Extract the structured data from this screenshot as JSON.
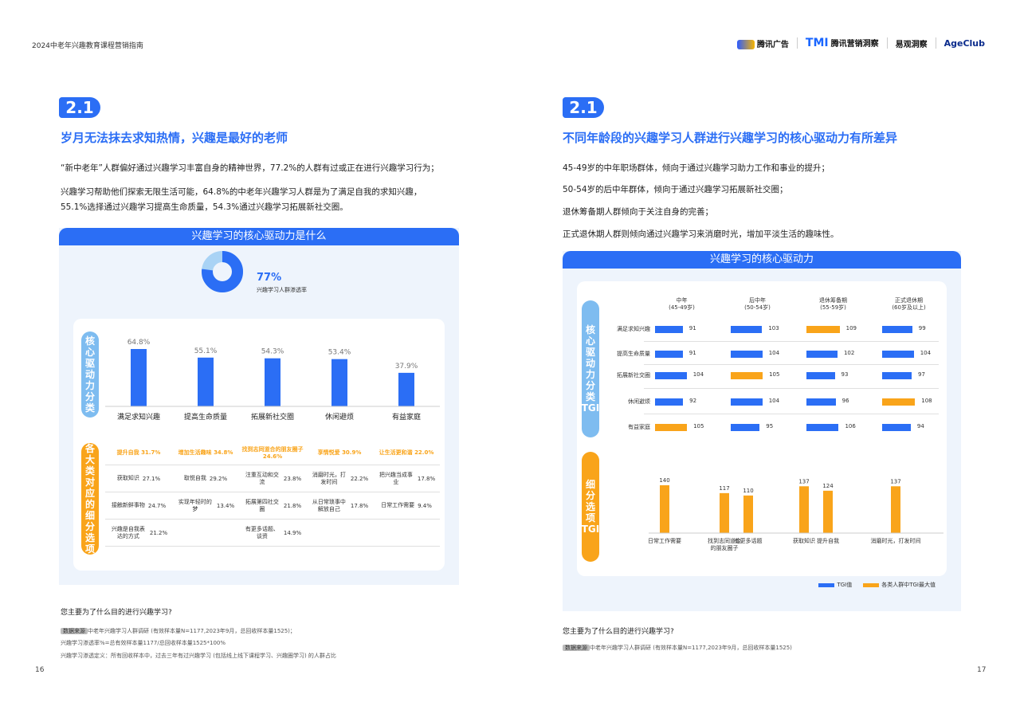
{
  "header": {
    "doc_title": "2024中老年兴趣教育课程营销指南",
    "logos": [
      "腾讯广告",
      "腾讯营销洞察",
      "易观洞察",
      "AgeClub"
    ]
  },
  "left": {
    "section_num": "2.1",
    "heading": "岁月无法抹去求知热情，兴趣是最好的老师",
    "para1": "“新中老年”人群偏好通过兴趣学习丰富自身的精神世界，77.2%的人群有过或正在进行兴趣学习行为；",
    "para2": "兴趣学习帮助他们探索无限生活可能，64.8%的中老年兴趣学习人群是为了满足自我的求知兴趣，",
    "para3": "55.1%选择通过兴趣学习提高生命质量，54.3%通过兴趣学习拓展新社交圈。",
    "panel_title": "兴趣学习的核心驱动力是什么",
    "donut_value": "77%",
    "donut_label": "兴趣学习人群渗透率",
    "donut_fraction": 0.77,
    "axis_label_1": "核心驱动力分类",
    "axis_label_2": "各大类对应的细分选项",
    "bars": [
      {
        "label": "满足求知兴趣",
        "value": 64.8,
        "text": "64.8%"
      },
      {
        "label": "提高生命质量",
        "value": 55.1,
        "text": "55.1%"
      },
      {
        "label": "拓展新社交圈",
        "value": 54.3,
        "text": "54.3%"
      },
      {
        "label": "休闲避烦",
        "value": 53.4,
        "text": "53.4%"
      },
      {
        "label": "有益家庭",
        "value": 37.9,
        "text": "37.9%"
      }
    ],
    "sub_headers": [
      {
        "name": "提升自我",
        "value": "31.7%"
      },
      {
        "name": "增加生活趣味",
        "value": "34.8%"
      },
      {
        "name": "找到志同道合的朋友圈子",
        "value": "24.6%"
      },
      {
        "name": "享情悦爱",
        "value": "30.9%"
      },
      {
        "name": "让生活更和谐",
        "value": "22.0%"
      }
    ],
    "sub_rows": [
      [
        {
          "name": "获取知识",
          "value": "27.1%"
        },
        {
          "name": "取悦自我",
          "value": "29.2%"
        },
        {
          "name": "注重互动和交流",
          "value": "23.8%"
        },
        {
          "name": "消磨时光，打发时间",
          "value": "22.2%"
        },
        {
          "name": "把兴趣当成事业",
          "value": "17.8%"
        }
      ],
      [
        {
          "name": "接触新鲜事物",
          "value": "24.7%"
        },
        {
          "name": "实现年轻时的梦",
          "value": "13.4%"
        },
        {
          "name": "拓展第四社交圈",
          "value": "21.8%"
        },
        {
          "name": "从日常琐事中解放自己",
          "value": "17.8%"
        },
        {
          "name": "日常工作需要",
          "value": "9.4%"
        }
      ],
      [
        {
          "name": "兴趣是自我表达的方式",
          "value": "21.2%"
        },
        {
          "name": "",
          "value": ""
        },
        {
          "name": "有更多话题、谈资",
          "value": "14.9%"
        },
        {
          "name": "",
          "value": ""
        },
        {
          "name": "",
          "value": ""
        }
      ]
    ],
    "question": "您主要为了什么目的进行兴趣学习?",
    "source_tag": "数据来源",
    "source": "中老年兴趣学习人群调研 (有效样本量N=1177,2023年9月，总回收样本量1525)；",
    "note1": "兴趣学习渗透率%=总有效样本量1177/总回收样本量1525*100%",
    "note2": "兴趣学习渗透定义：所有回收样本中，过去三年有过兴趣学习 (包括线上线下课程学习、兴趣圈学习) 的人群占比",
    "page_num": "16"
  },
  "right": {
    "section_num": "2.1",
    "heading": "不同年龄段的兴趣学习人群进行兴趣学习的核心驱动力有所差异",
    "lines": [
      "45-49岁的中年职场群体，倾向于通过兴趣学习助力工作和事业的提升；",
      "50-54岁的后中年群体，倾向于通过兴趣学习拓展新社交圈；",
      "退休筹备期人群倾向于关注自身的完善；",
      "正式退休期人群则倾向通过兴趣学习来消磨时光，增加平淡生活的趣味性。"
    ],
    "panel_title": "兴趣学习的核心驱动力",
    "axis_label_top": "核心驱动力分类TGI",
    "axis_label_bottom": "细分选项TGI",
    "columns": [
      {
        "name": "中年",
        "range": "(45-49岁)"
      },
      {
        "name": "后中年",
        "range": "(50-54岁)"
      },
      {
        "name": "退休筹备期",
        "range": "(55-59岁)"
      },
      {
        "name": "正式退休期",
        "range": "(60岁及以上)"
      }
    ],
    "tgi_rows": [
      {
        "label": "满足求知兴趣",
        "values": [
          91,
          103,
          109,
          99
        ],
        "max_index": 2
      },
      {
        "label": "提高生命质量",
        "values": [
          91,
          104,
          102,
          104
        ],
        "max_index": -1
      },
      {
        "label": "拓展新社交圈",
        "values": [
          104,
          105,
          93,
          97
        ],
        "max_index": 1
      },
      {
        "label": "休闲避烦",
        "values": [
          92,
          104,
          96,
          108
        ],
        "max_index": 3
      },
      {
        "label": "有益家庭",
        "values": [
          105,
          95,
          106,
          94
        ],
        "max_index": 0
      }
    ],
    "sub_bars": [
      {
        "label": "日常工作需要",
        "value": 140,
        "group": 0
      },
      {
        "label": "找到志同道合的朋友圈子",
        "value": 117,
        "group": 1
      },
      {
        "label": "有更多话题",
        "value": 110,
        "group": 1
      },
      {
        "label": "获取知识",
        "value": 137,
        "group": 2
      },
      {
        "label": "提升自我",
        "value": 124,
        "group": 2
      },
      {
        "label": "消磨时光，打发时间",
        "value": 137,
        "group": 3
      }
    ],
    "legend": {
      "blue": "TGI值",
      "orange": "各类人群中TGI最大值"
    },
    "question": "您主要为了什么目的进行兴趣学习?",
    "source_tag": "数据来源",
    "source": "中老年兴趣学习人群调研 (有效样本量N=1177,2023年9月，总回收样本量1525)",
    "page_num": "17"
  },
  "colors": {
    "blue": "#2b6ef5",
    "orange": "#f9a41a",
    "light_blue": "#7ebcf0",
    "panel_bg": "#eef4fc"
  }
}
